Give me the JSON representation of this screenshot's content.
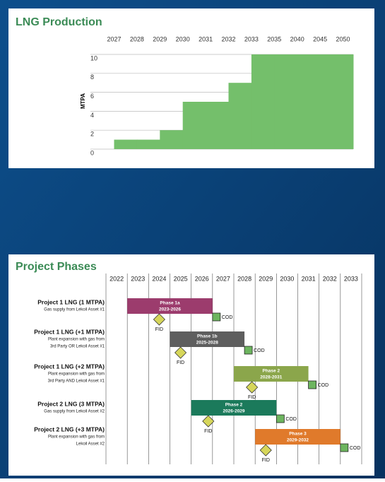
{
  "chart_data": [
    {
      "type": "step",
      "title": "LNG Production",
      "ylabel": "MTPA",
      "categories": [
        "2027",
        "2028",
        "2029",
        "2030",
        "2031",
        "2032",
        "2033",
        "2035",
        "2040",
        "2045",
        "2050"
      ],
      "values": [
        1,
        1,
        2,
        5,
        5,
        7,
        10,
        10,
        10,
        10,
        10
      ],
      "color": "#74bf6b",
      "ylim": [
        0,
        10
      ],
      "yticks": [
        0,
        2,
        4,
        6,
        8,
        10
      ],
      "grid": true
    },
    {
      "type": "gantt",
      "title": "Project Phases",
      "categories": [
        "2022",
        "2023",
        "2024",
        "2025",
        "2026",
        "2027",
        "2028",
        "2029",
        "2030",
        "2031",
        "2032",
        "2033"
      ],
      "xlim": [
        2022,
        2034
      ],
      "milestone_labels": {
        "fid": "FID",
        "cod": "COD"
      },
      "projects": [
        {
          "name": "Project 1 LNG (1 MTPA)",
          "description": [
            "Gas supply from Lekoil Asset #1"
          ],
          "phase": "Phase 1a",
          "period": "2023-2026",
          "start": 2023,
          "end": 2027,
          "fid": 2024.5,
          "color": "#9c3c6d"
        },
        {
          "name": "Project 1 LNG (+1 MTPA)",
          "description": [
            "Plant expansion with gas from",
            "3rd Party OR Lekoil Asset #1"
          ],
          "phase": "Phase 1b",
          "period": "2025-2028",
          "start": 2025,
          "end": 2028.5,
          "fid": 2025.5,
          "color": "#5e5e5e"
        },
        {
          "name": "Project 1 LNG (+2 MTPA)",
          "description": [
            "Plant expansion with gas from",
            "3rd Party AND Lekoil Asset #1"
          ],
          "phase": "Phase 2",
          "period": "2028-2031",
          "start": 2028,
          "end": 2031.5,
          "fid": 2028.85,
          "color": "#8ba64b"
        },
        {
          "name": "Project 2 LNG (3 MTPA)",
          "description": [
            "Gas supply from Lekoil Asset #2"
          ],
          "phase": "Phase 2",
          "period": "2026-2029",
          "start": 2026,
          "end": 2030,
          "fid": 2026.8,
          "color": "#1b7a5b"
        },
        {
          "name": "Project 2 LNG (+3 MTPA)",
          "description": [
            "Plant expansion with gas from",
            "Lekoil Asset #2"
          ],
          "phase": "Phase 3",
          "period": "2029-2032",
          "start": 2029,
          "end": 2033,
          "fid": 2029.5,
          "color": "#e07a2b"
        }
      ]
    }
  ]
}
